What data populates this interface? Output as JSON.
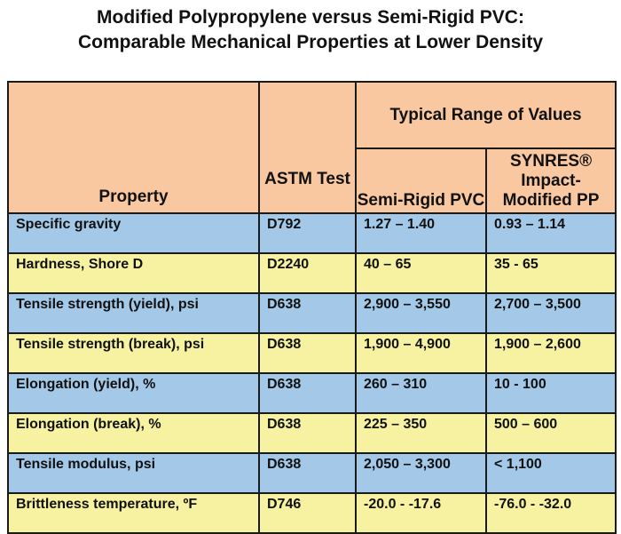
{
  "title": {
    "line1": "Modified Polypropylene versus Semi-Rigid PVC:",
    "line2": "Comparable Mechanical Properties at Lower Density"
  },
  "table": {
    "headers": {
      "property": "Property",
      "astm": "ASTM Test",
      "group": "Typical Range of Values",
      "pvc": "Semi-Rigid PVC",
      "pp": "SYNRES® Impact-Modified PP"
    },
    "rows": [
      {
        "property": "Specific gravity",
        "astm": "D792",
        "pvc": "1.27 – 1.40",
        "pp": "0.93 – 1.14"
      },
      {
        "property": "Hardness, Shore D",
        "astm": "D2240",
        "pvc": "40 – 65",
        "pp": "35 - 65"
      },
      {
        "property": "Tensile strength (yield), psi",
        "astm": "D638",
        "pvc": "2,900 – 3,550",
        "pp": "2,700 – 3,500"
      },
      {
        "property": "Tensile strength (break), psi",
        "astm": "D638",
        "pvc": "1,900 – 4,900",
        "pp": "1,900 – 2,600"
      },
      {
        "property": "Elongation (yield), %",
        "astm": "D638",
        "pvc": "260 – 310",
        "pp": "10 - 100"
      },
      {
        "property": "Elongation (break), %",
        "astm": "D638",
        "pvc": "225 – 350",
        "pp": "500 – 600"
      },
      {
        "property": "Tensile modulus, psi",
        "astm": "D638",
        "pvc": "2,050 – 3,300",
        "pp": "< 1,100"
      },
      {
        "property": "Brittleness temperature, ºF",
        "astm": "D746",
        "pvc": "-20.0 - -17.6",
        "pp": "-76.0 - -32.0"
      }
    ]
  },
  "colors": {
    "header": "#f9c8a0",
    "row_blue": "#a3c8e8",
    "row_yellow": "#f6f2a2"
  }
}
